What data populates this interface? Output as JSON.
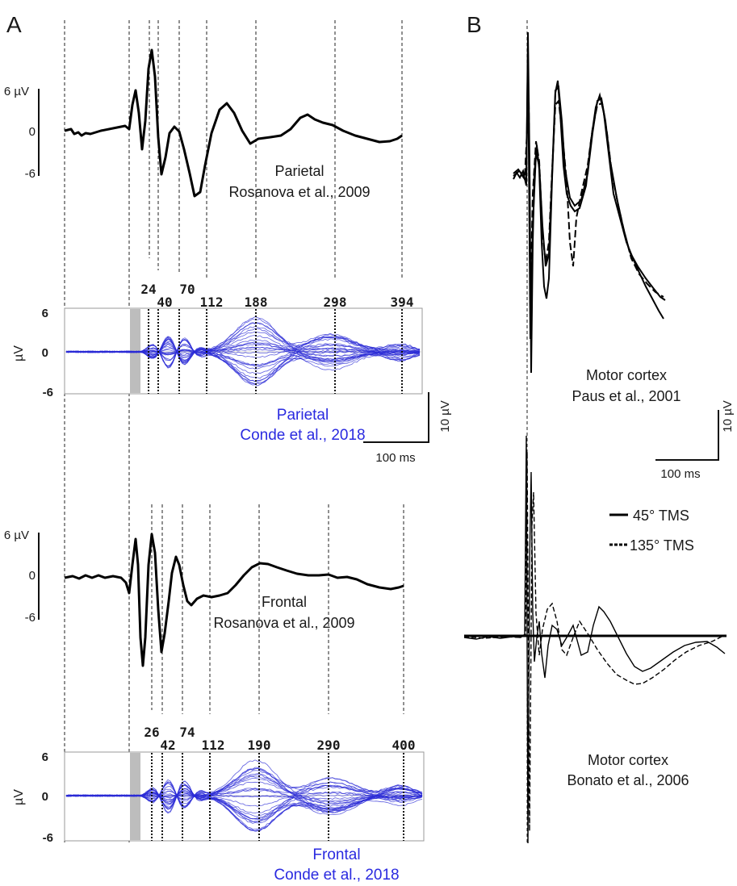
{
  "figure": {
    "panel_a_label": "A",
    "panel_b_label": "B"
  },
  "panel_a": {
    "parietal_rosanova": {
      "region": "Parietal",
      "citation": "Rosanova et al., 2009",
      "y_ticks": [
        "6 µV",
        "0",
        "-6"
      ]
    },
    "parietal_conde": {
      "region": "Parietal",
      "citation": "Conde et al., 2018",
      "y_label": "µV",
      "y_ticks": [
        "6",
        "0",
        "-6"
      ],
      "peaks": [
        "24",
        "40",
        "70",
        "112",
        "188",
        "298",
        "394"
      ]
    },
    "scale_bar": {
      "y": "10 µV",
      "x": "100 ms"
    },
    "frontal_rosanova": {
      "region": "Frontal",
      "citation": "Rosanova et al., 2009",
      "y_ticks": [
        "6 µV",
        "0",
        "-6"
      ]
    },
    "frontal_conde": {
      "region": "Frontal",
      "citation": "Conde et al., 2018",
      "y_label": "µV",
      "y_ticks": [
        "6",
        "0",
        "-6"
      ],
      "peaks": [
        "26",
        "42",
        "74",
        "112",
        "190",
        "290",
        "400"
      ]
    }
  },
  "panel_b": {
    "paus": {
      "region": "Motor cortex",
      "citation": "Paus et al., 2001"
    },
    "scale_bar": {
      "y": "10 µV",
      "x": "100 ms"
    },
    "legend": {
      "solid": "45° TMS",
      "dashed": "135° TMS"
    },
    "bonato": {
      "region": "Motor cortex",
      "citation": "Bonato et al., 2006"
    }
  }
}
